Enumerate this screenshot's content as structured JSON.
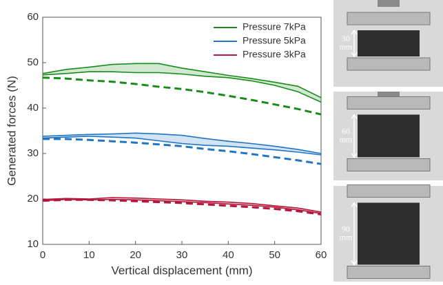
{
  "chart_data": {
    "type": "line",
    "x_label": "Vertical displacement (mm)",
    "y_label": "Generated forces (N)",
    "x": [
      0,
      5,
      10,
      15,
      20,
      25,
      30,
      35,
      40,
      45,
      50,
      55,
      60
    ],
    "xlim": [
      0,
      60
    ],
    "xticks": [
      0,
      10,
      20,
      30,
      40,
      50,
      60
    ],
    "ylim": [
      10,
      60
    ],
    "yticks": [
      10,
      20,
      30,
      40,
      50,
      60
    ],
    "series": [
      {
        "name": "Pressure 7kPa",
        "color": "#1a8a1a",
        "upper": [
          47.6,
          48.5,
          49.0,
          49.6,
          49.8,
          49.8,
          48.8,
          48.0,
          47.2,
          46.5,
          45.7,
          44.8,
          42.3
        ],
        "lower": [
          47.3,
          47.6,
          48.0,
          48.0,
          47.8,
          47.8,
          47.5,
          47.0,
          46.7,
          46.0,
          45.0,
          43.6,
          41.3
        ],
        "model": [
          46.7,
          46.5,
          46.1,
          45.8,
          45.3,
          44.7,
          44.2,
          43.5,
          42.7,
          41.8,
          40.8,
          39.8,
          38.6
        ]
      },
      {
        "name": "Pressure 5kPa",
        "color": "#1f74c4",
        "upper": [
          33.8,
          34.0,
          34.2,
          34.3,
          34.5,
          34.3,
          34.0,
          33.3,
          32.7,
          32.2,
          31.6,
          30.9,
          30.0
        ],
        "lower": [
          33.4,
          33.6,
          33.8,
          33.6,
          33.4,
          32.8,
          32.2,
          31.8,
          31.6,
          31.2,
          30.8,
          30.3,
          29.7
        ],
        "model": [
          33.2,
          33.2,
          33.0,
          32.7,
          32.4,
          32.0,
          31.6,
          31.0,
          30.5,
          29.9,
          29.2,
          28.5,
          27.7
        ]
      },
      {
        "name": "Pressure 3kPa",
        "color": "#b5173a",
        "upper": [
          19.9,
          20.1,
          20.0,
          20.3,
          20.2,
          20.0,
          19.8,
          19.5,
          19.3,
          19.0,
          18.5,
          18.0,
          17.1
        ],
        "lower": [
          19.6,
          19.9,
          19.8,
          19.9,
          19.8,
          19.6,
          19.4,
          19.2,
          18.9,
          18.6,
          18.2,
          17.6,
          16.8
        ],
        "model": [
          19.6,
          19.8,
          19.8,
          19.7,
          19.5,
          19.3,
          19.1,
          18.8,
          18.5,
          18.2,
          17.8,
          17.3,
          16.6
        ]
      }
    ]
  },
  "photos": [
    {
      "label": [
        "30",
        "mm"
      ]
    },
    {
      "label": [
        "60",
        "mm"
      ]
    },
    {
      "label": [
        "90",
        "mm"
      ]
    }
  ]
}
